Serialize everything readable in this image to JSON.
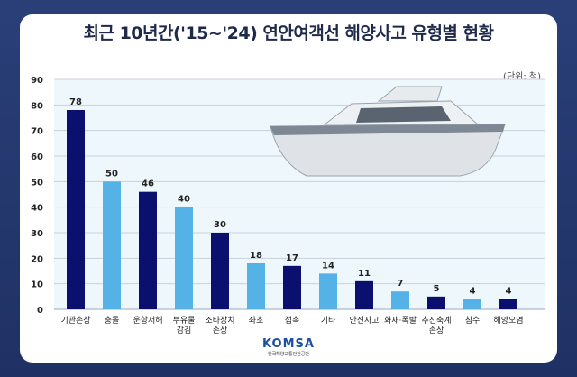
{
  "chart_data": {
    "type": "bar",
    "title": "최근 10년간('15~'24) 연안여객선 해양사고 유형별 현황",
    "unit": "(단위: 척)",
    "categories": [
      "기관손상",
      "충돌",
      "운항저해",
      "부유물 감김",
      "조타장치 손상",
      "좌초",
      "접촉",
      "기타",
      "안전사고",
      "화재·폭발",
      "추진축계 손상",
      "침수",
      "해양오염"
    ],
    "values": [
      78,
      50,
      46,
      40,
      30,
      18,
      17,
      14,
      11,
      7,
      5,
      4,
      4
    ],
    "ylim": [
      0,
      90
    ],
    "yticks": [
      0,
      10,
      20,
      30,
      40,
      50,
      60,
      70,
      80,
      90
    ],
    "grid": true,
    "colors": {
      "dark": "#0b0f6e",
      "light": "#55b2e6"
    }
  },
  "logo": {
    "name": "KOMSA",
    "subtitle": "한국해양교통안전공단"
  }
}
